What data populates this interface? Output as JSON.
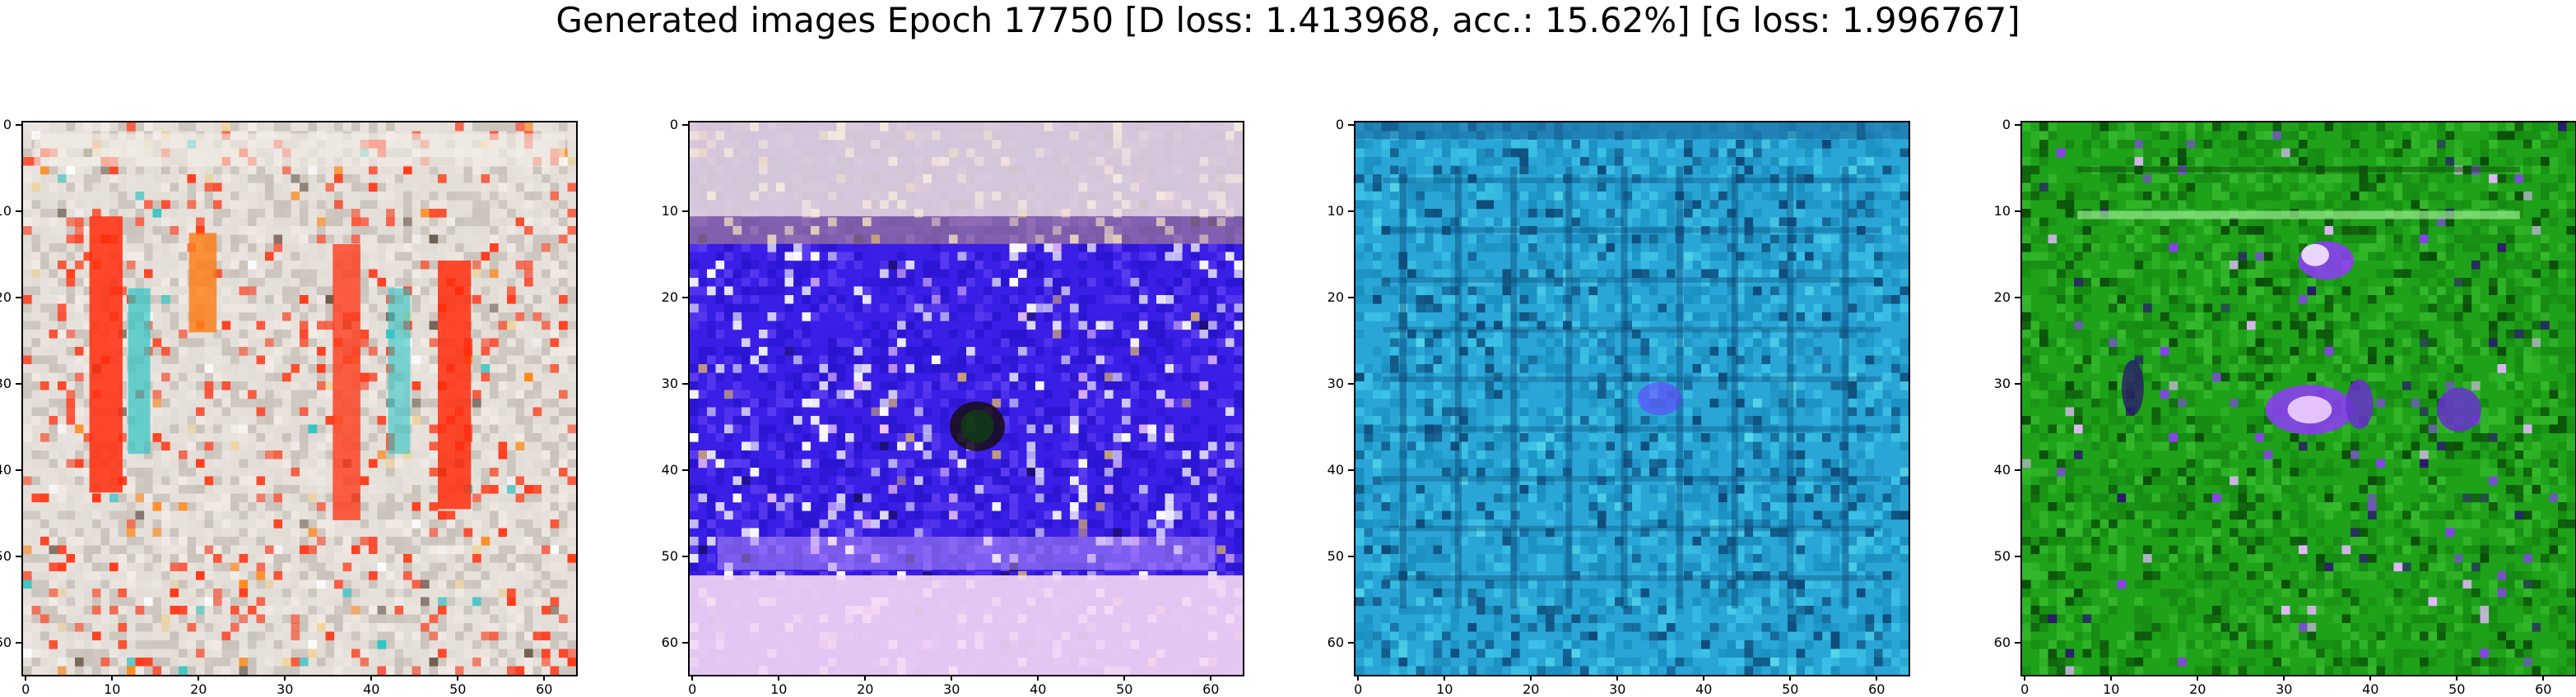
{
  "figure": {
    "title": "Generated images Epoch 17750 [D loss: 1.413968, acc.: 15.62%] [G loss: 1.996767]"
  },
  "panels": [
    {
      "name": "generated-image-1",
      "dominant_color": "#d9d3cf",
      "palette": [
        "#e8e2dc",
        "#c9c2ba",
        "#f2ebe6",
        "#ff3b1a",
        "#ff8a1a",
        "#2ec4c4",
        "#ffffff",
        "#6b5a4a",
        "#f0d59a"
      ],
      "x_ticks": [
        "0",
        "10",
        "20",
        "30",
        "40",
        "50",
        "60"
      ],
      "y_ticks": [
        "0",
        "10",
        "20",
        "30",
        "40",
        "50",
        "60"
      ]
    },
    {
      "name": "generated-image-2",
      "dominant_color": "#3a1fe6",
      "palette": [
        "#3a1fe6",
        "#2a14d0",
        "#5a3cf0",
        "#ffffff",
        "#f6c7f2",
        "#c9a27a",
        "#1a0d6b",
        "#e3b8ff"
      ],
      "x_ticks": [
        "0",
        "10",
        "20",
        "30",
        "40",
        "50",
        "60"
      ],
      "y_ticks": [
        "0",
        "10",
        "20",
        "30",
        "40",
        "50",
        "60"
      ]
    },
    {
      "name": "generated-image-3",
      "dominant_color": "#2aa6d6",
      "palette": [
        "#2aa6d6",
        "#1b8fbf",
        "#3cc2e6",
        "#0e4a78",
        "#56d6e8",
        "#1a6aa0"
      ],
      "x_ticks": [
        "0",
        "10",
        "20",
        "30",
        "40",
        "50",
        "60"
      ],
      "y_ticks": [
        "0",
        "10",
        "20",
        "30",
        "40",
        "50",
        "60"
      ]
    },
    {
      "name": "generated-image-4",
      "dominant_color": "#1fa21a",
      "palette": [
        "#1fa21a",
        "#168a12",
        "#35b82c",
        "#0b4d0a",
        "#8a3ff0",
        "#e6b8ff",
        "#2a1a6b"
      ],
      "x_ticks": [
        "0",
        "10",
        "20",
        "30",
        "40",
        "50",
        "60"
      ],
      "y_ticks": [
        "0",
        "10",
        "20",
        "30",
        "40",
        "50",
        "60"
      ]
    }
  ]
}
